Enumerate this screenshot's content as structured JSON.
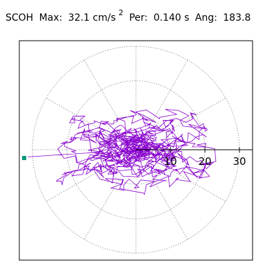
{
  "header": {
    "station": "SCOH",
    "max_label": "Max:",
    "max_value": "32.1 cm/s",
    "max_unit_power": "2",
    "per_label": "Per:",
    "per_value": "0.140 s",
    "ang_label": "Ang:",
    "ang_value": "183.8"
  },
  "chart_data": {
    "type": "scatter",
    "subtype": "polar-hodogram",
    "title": "",
    "radial_ticks": [
      10,
      20,
      30
    ],
    "radial_tick_labels": [
      "10",
      "20",
      "30"
    ],
    "rings": [
      10,
      20,
      30
    ],
    "spokes_deg": [
      0,
      30,
      60,
      90,
      120,
      150,
      180,
      210,
      240,
      270,
      300,
      330
    ],
    "max_amplitude": 32.1,
    "max_angle_deg": 183.8,
    "trace_color": "#8800cc",
    "marker_color": "#009977",
    "grid_color": "#888888",
    "grid": true
  }
}
